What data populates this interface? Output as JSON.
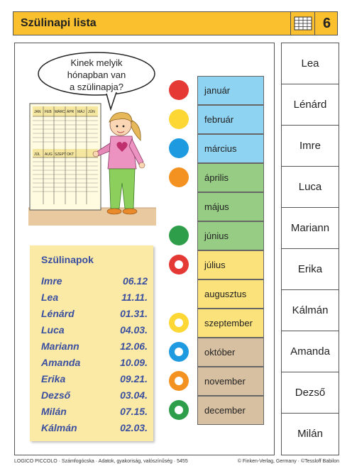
{
  "header": {
    "title": "Szülinapi lista",
    "page_number": "6",
    "icon": "grid-icon",
    "color": "#fbc02d"
  },
  "bubble": {
    "lines": [
      "Kinek melyik",
      "hónapban van",
      "a szülinapja?"
    ]
  },
  "calendar_board": {
    "top_labels": [
      "JAN",
      "FEB",
      "MÁRC",
      "ÁPR",
      "MÁJ",
      "JÚN"
    ],
    "bottom_labels": [
      "JÚL",
      "AUG",
      "SZEPT",
      "OKT"
    ]
  },
  "birthday_note": {
    "title": "Szülinapok",
    "rows": [
      {
        "name": "Imre",
        "date": "06.12"
      },
      {
        "name": "Lea",
        "date": "11.11."
      },
      {
        "name": "Lénárd",
        "date": "01.31."
      },
      {
        "name": "Luca",
        "date": "04.03."
      },
      {
        "name": "Mariann",
        "date": "12.06."
      },
      {
        "name": "Amanda",
        "date": "10.09."
      },
      {
        "name": "Erika",
        "date": "09.21."
      },
      {
        "name": "Dezső",
        "date": "03.04."
      },
      {
        "name": "Milán",
        "date": "07.15."
      },
      {
        "name": "Kálmán",
        "date": "02.03."
      }
    ]
  },
  "months": [
    {
      "label": "január",
      "color": "#8fd3f2",
      "dot": {
        "color": "#e53935",
        "style": "solid"
      }
    },
    {
      "label": "február",
      "color": "#8fd3f2",
      "dot": {
        "color": "#fdd835",
        "style": "solid"
      }
    },
    {
      "label": "március",
      "color": "#8fd3f2",
      "dot": {
        "color": "#1e9be0",
        "style": "solid"
      }
    },
    {
      "label": "április",
      "color": "#96cc84",
      "dot": {
        "color": "#f39221",
        "style": "solid"
      }
    },
    {
      "label": "május",
      "color": "#96cc84",
      "dot": null
    },
    {
      "label": "június",
      "color": "#96cc84",
      "dot": {
        "color": "#2e9e4a",
        "style": "solid"
      }
    },
    {
      "label": "július",
      "color": "#fbe27a",
      "dot": {
        "color": "#e53935",
        "style": "ring"
      }
    },
    {
      "label": "augusztus",
      "color": "#fbe27a",
      "dot": null
    },
    {
      "label": "szeptember",
      "color": "#fbe27a",
      "dot": {
        "color": "#fdd835",
        "style": "ring"
      }
    },
    {
      "label": "október",
      "color": "#d7bfa1",
      "dot": {
        "color": "#1e9be0",
        "style": "ring"
      }
    },
    {
      "label": "november",
      "color": "#d7bfa1",
      "dot": {
        "color": "#f39221",
        "style": "ring"
      }
    },
    {
      "label": "december",
      "color": "#d7bfa1",
      "dot": {
        "color": "#2e9e4a",
        "style": "ring"
      }
    }
  ],
  "names": [
    "Lea",
    "Lénárd",
    "Imre",
    "Luca",
    "Mariann",
    "Erika",
    "Kálmán",
    "Amanda",
    "Dezső",
    "Milán"
  ],
  "footer": {
    "left": "LOGICO PICCOLO · Számfogócska · Adatok, gyakoriság, valószínűség · 5455",
    "right": "© Finken-Verlag, Germany · ©Tessloff Babilon"
  }
}
